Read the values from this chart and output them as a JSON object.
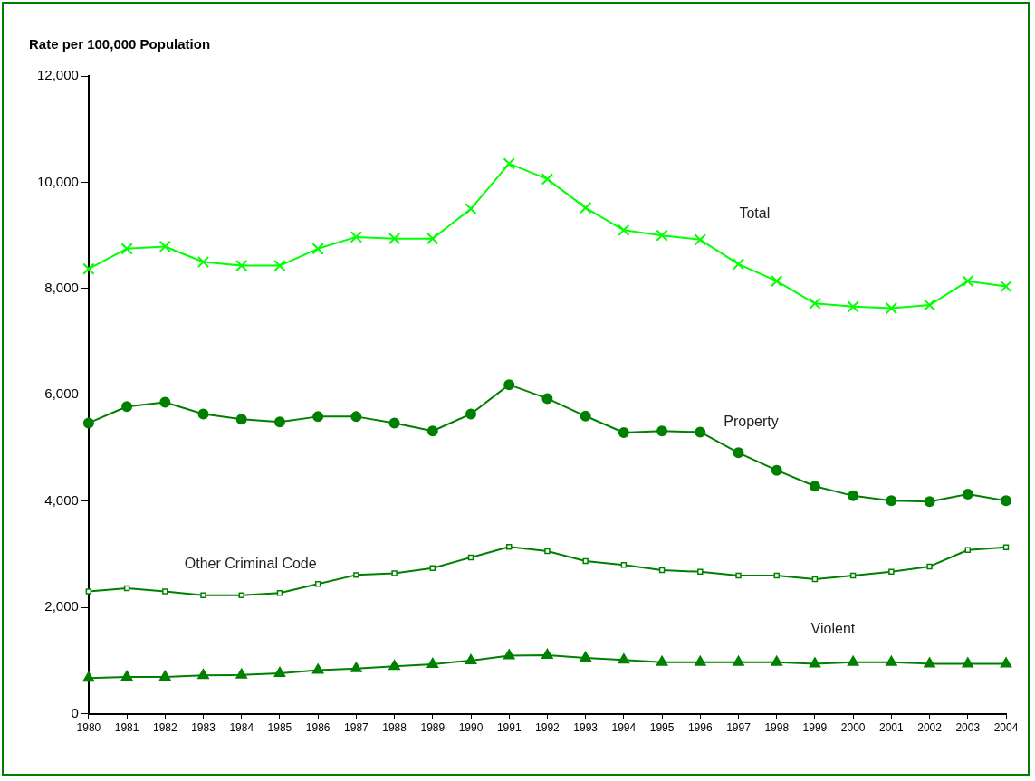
{
  "chart_data": {
    "type": "line",
    "ylabel": "Rate per 100,000 Population",
    "categories": [
      "1980",
      "1981",
      "1982",
      "1983",
      "1984",
      "1985",
      "1986",
      "1987",
      "1988",
      "1989",
      "1990",
      "1991",
      "1992",
      "1993",
      "1994",
      "1995",
      "1996",
      "1997",
      "1998",
      "1999",
      "2000",
      "2001",
      "2002",
      "2003",
      "2004"
    ],
    "ylim": [
      0,
      12000
    ],
    "yticks": [
      {
        "value": 0,
        "label": "0"
      },
      {
        "value": 2000,
        "label": "2,000"
      },
      {
        "value": 4000,
        "label": "4,000"
      },
      {
        "value": 6000,
        "label": "6,000"
      },
      {
        "value": 8000,
        "label": "8,000"
      },
      {
        "value": 10000,
        "label": "10,000"
      },
      {
        "value": 12000,
        "label": "12,000"
      }
    ],
    "grid": false,
    "legend": false,
    "series": [
      {
        "name": "Total",
        "color": "#00ff00",
        "marker": "cross",
        "values": [
          8370,
          8750,
          8790,
          8500,
          8430,
          8430,
          8750,
          8970,
          8940,
          8940,
          9500,
          10350,
          10060,
          9520,
          9100,
          9000,
          8920,
          8460,
          8140,
          7720,
          7660,
          7630,
          7690,
          8140,
          8040
        ]
      },
      {
        "name": "Property",
        "color": "#008000",
        "marker": "circle",
        "values": [
          5470,
          5780,
          5860,
          5640,
          5540,
          5490,
          5590,
          5590,
          5470,
          5320,
          5640,
          6190,
          5930,
          5600,
          5290,
          5320,
          5300,
          4910,
          4580,
          4280,
          4100,
          4010,
          3990,
          4130,
          4010
        ]
      },
      {
        "name": "Other Criminal Code",
        "color": "#008000",
        "marker": "square",
        "values": [
          2300,
          2360,
          2300,
          2230,
          2230,
          2270,
          2440,
          2610,
          2640,
          2740,
          2940,
          3140,
          3060,
          2870,
          2800,
          2700,
          2670,
          2600,
          2600,
          2530,
          2600,
          2670,
          2770,
          3080,
          3130
        ]
      },
      {
        "name": "Violent",
        "color": "#008000",
        "marker": "triangle",
        "values": [
          670,
          690,
          690,
          720,
          730,
          760,
          820,
          850,
          890,
          930,
          1000,
          1090,
          1100,
          1050,
          1010,
          970,
          970,
          970,
          970,
          940,
          970,
          970,
          940,
          940,
          940
        ]
      }
    ]
  }
}
